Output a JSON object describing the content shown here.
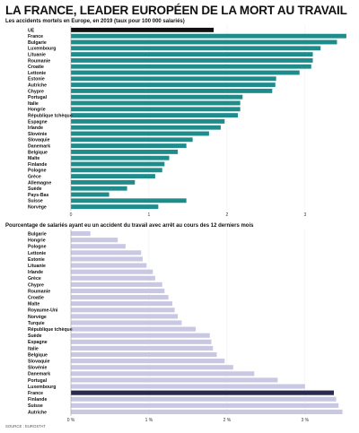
{
  "title": "LA FRANCE, LEADER EUROPÉEN DE LA MORT AU TRAVAIL",
  "source": "SOURCE : EUROSTAT",
  "colors": {
    "teal": "#1f8c8c",
    "lavender": "#c9c8e3",
    "navy": "#2a2a4e",
    "black": "#111111"
  },
  "chart_data": [
    {
      "type": "bar",
      "orientation": "horizontal",
      "title": "Les accidents mortels en Europe, en 2019 (taux pour 100 000 salariés)",
      "categories": [
        "UE",
        "France",
        "Bulgarie",
        "Luxembourg",
        "Lituanie",
        "Roumanie",
        "Croatie",
        "Lettonie",
        "Estonie",
        "Autriche",
        "Chypre",
        "Portugal",
        "Italie",
        "Hongrie",
        "République tchèque",
        "Espagne",
        "Irlande",
        "Slovénie",
        "Slovaquie",
        "Danemark",
        "Belgique",
        "Malte",
        "Finlande",
        "Pologne",
        "Grèce",
        "Allemagne",
        "Suède",
        "Pays-Bas",
        "Suisse",
        "Norvège"
      ],
      "values": [
        1.83,
        3.53,
        3.41,
        3.2,
        3.1,
        3.1,
        3.08,
        2.93,
        2.63,
        2.62,
        2.58,
        2.2,
        2.17,
        2.17,
        2.14,
        1.97,
        1.92,
        1.77,
        1.56,
        1.48,
        1.37,
        1.26,
        1.2,
        1.17,
        1.08,
        0.82,
        0.72,
        0.49,
        1.48,
        1.12
      ],
      "highlight": {
        "UE": "black"
      },
      "ticks": [
        "0",
        "1",
        "2",
        "3"
      ],
      "xlim": [
        0,
        3.6
      ]
    },
    {
      "type": "bar",
      "orientation": "horizontal",
      "title": "Pourcentage de salariés ayant eu un accident du travail avec arrêt au cours des 12 derniers mois",
      "categories": [
        "Bulgarie",
        "Hongrie",
        "Pologne",
        "Lettonie",
        "Estonie",
        "Lituanie",
        "Irlande",
        "Grèce",
        "Chypre",
        "Roumanie",
        "Croatie",
        "Malte",
        "Royaume-Uni",
        "Norvège",
        "Turquie",
        "République tchèque",
        "Suède",
        "Espagne",
        "Italie",
        "Belgique",
        "Slovaquie",
        "Slovénie",
        "Danemark",
        "Portugal",
        "Luxembourg",
        "France",
        "Finlande",
        "Suisse",
        "Autriche"
      ],
      "values": [
        0.25,
        0.6,
        0.7,
        0.9,
        0.92,
        0.97,
        1.05,
        1.08,
        1.17,
        1.2,
        1.25,
        1.3,
        1.33,
        1.37,
        1.42,
        1.6,
        1.78,
        1.8,
        1.82,
        1.87,
        1.97,
        2.08,
        2.35,
        2.65,
        3.0,
        3.37,
        3.4,
        3.43,
        3.48
      ],
      "highlight": {
        "France": "navy"
      },
      "ticks": [
        "0 %",
        "1 %",
        "2 %",
        "3 %"
      ],
      "xlim": [
        0,
        3.6
      ]
    }
  ]
}
